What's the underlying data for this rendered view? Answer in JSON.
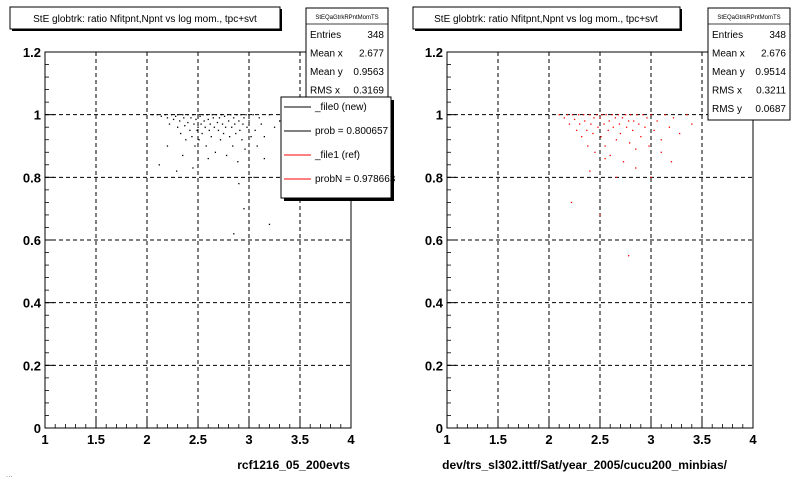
{
  "footer_text": "...",
  "chart_data": [
    {
      "type": "scatter",
      "title": "StE globtrk: ratio Nfitpnt,Npnt vs log mom., tpc+svt",
      "xlabel": "rcf1216_05_200evts",
      "ylabel": "",
      "xlim": [
        1,
        4
      ],
      "ylim": [
        0,
        1.2
      ],
      "x_ticks": [
        "1",
        "1.5",
        "2",
        "2.5",
        "3",
        "3.5",
        "4"
      ],
      "y_ticks": [
        "0",
        "0.2",
        "0.4",
        "0.6",
        "0.8",
        "1",
        "1.2"
      ],
      "grid": true,
      "marker_color": "#000000",
      "stats_box": {
        "name": "StEQaGtrkRPntMomTS",
        "rows": [
          {
            "label": "Entries",
            "value": "348"
          },
          {
            "label": "Mean x",
            "value": "2.677"
          },
          {
            "label": "Mean y",
            "value": "0.9563"
          },
          {
            "label": "RMS x",
            "value": "0.3169"
          }
        ]
      },
      "legend": [
        {
          "label": "_file0 (new)",
          "color": "#000000"
        },
        {
          "label": "prob = 0.800657",
          "color": "#000000"
        },
        {
          "label": "_file1 (ref)",
          "color": "#ff0000"
        },
        {
          "label": "probN = 0.978663",
          "color": "#ff0000"
        }
      ],
      "points": [
        [
          2.05,
          1.0
        ],
        [
          2.1,
          1.0
        ],
        [
          2.14,
          0.995
        ],
        [
          2.18,
          1.0
        ],
        [
          2.2,
          0.99
        ],
        [
          2.22,
          0.97
        ],
        [
          2.24,
          1.0
        ],
        [
          2.26,
          0.985
        ],
        [
          2.28,
          0.995
        ],
        [
          2.3,
          0.96
        ],
        [
          2.3,
          1.0
        ],
        [
          2.32,
          0.98
        ],
        [
          2.33,
          0.94
        ],
        [
          2.35,
          1.0
        ],
        [
          2.36,
          0.99
        ],
        [
          2.37,
          0.965
        ],
        [
          2.38,
          0.92
        ],
        [
          2.4,
          1.0
        ],
        [
          2.4,
          0.975
        ],
        [
          2.42,
          0.95
        ],
        [
          2.43,
          0.99
        ],
        [
          2.44,
          0.93
        ],
        [
          2.45,
          1.0
        ],
        [
          2.46,
          0.97
        ],
        [
          2.47,
          0.9
        ],
        [
          2.48,
          0.985
        ],
        [
          2.49,
          0.95
        ],
        [
          2.5,
          1.0
        ],
        [
          2.5,
          0.96
        ],
        [
          2.51,
          0.92
        ],
        [
          2.52,
          0.995
        ],
        [
          2.53,
          0.97
        ],
        [
          2.54,
          0.94
        ],
        [
          2.55,
          1.0
        ],
        [
          2.56,
          0.98
        ],
        [
          2.57,
          0.96
        ],
        [
          2.58,
          0.9
        ],
        [
          2.59,
          1.0
        ],
        [
          2.6,
          0.985
        ],
        [
          2.61,
          0.95
        ],
        [
          2.62,
          0.97
        ],
        [
          2.63,
          0.93
        ],
        [
          2.64,
          1.0
        ],
        [
          2.65,
          0.99
        ],
        [
          2.66,
          0.96
        ],
        [
          2.67,
          0.88
        ],
        [
          2.68,
          1.0
        ],
        [
          2.69,
          0.975
        ],
        [
          2.7,
          0.95
        ],
        [
          2.71,
          0.99
        ],
        [
          2.72,
          0.92
        ],
        [
          2.73,
          1.0
        ],
        [
          2.74,
          0.97
        ],
        [
          2.75,
          0.94
        ],
        [
          2.76,
          0.995
        ],
        [
          2.77,
          0.96
        ],
        [
          2.78,
          0.87
        ],
        [
          2.79,
          1.0
        ],
        [
          2.8,
          0.98
        ],
        [
          2.81,
          0.93
        ],
        [
          2.82,
          1.0
        ],
        [
          2.83,
          0.96
        ],
        [
          2.84,
          0.9
        ],
        [
          2.85,
          0.99
        ],
        [
          2.86,
          0.97
        ],
        [
          2.87,
          0.94
        ],
        [
          2.88,
          1.0
        ],
        [
          2.89,
          0.85
        ],
        [
          2.9,
          0.98
        ],
        [
          2.91,
          0.95
        ],
        [
          2.92,
          1.0
        ],
        [
          2.93,
          0.92
        ],
        [
          2.94,
          0.97
        ],
        [
          2.95,
          0.99
        ],
        [
          2.96,
          0.89
        ],
        [
          2.97,
          1.0
        ],
        [
          2.98,
          0.96
        ],
        [
          3.0,
          0.98
        ],
        [
          3.02,
          0.93
        ],
        [
          3.04,
          1.0
        ],
        [
          3.06,
          0.95
        ],
        [
          3.08,
          0.9
        ],
        [
          3.1,
          0.99
        ],
        [
          3.12,
          0.97
        ],
        [
          3.15,
          0.93
        ],
        [
          3.2,
          1.0
        ],
        [
          3.25,
          0.96
        ],
        [
          3.3,
          0.98
        ],
        [
          2.12,
          0.84
        ],
        [
          2.29,
          0.82
        ],
        [
          2.9,
          0.78
        ],
        [
          3.05,
          0.8
        ],
        [
          2.85,
          0.62
        ],
        [
          2.95,
          0.7
        ],
        [
          3.2,
          0.65
        ],
        [
          2.2,
          0.9
        ],
        [
          2.35,
          0.87
        ],
        [
          2.6,
          0.86
        ],
        [
          2.45,
          0.83
        ],
        [
          3.15,
          0.86
        ]
      ]
    },
    {
      "type": "scatter",
      "title": "StE globtrk: ratio Nfitpnt,Npnt vs log mom., tpc+svt",
      "xlabel": "dev/trs_sl302.ittf/Sat/year_2005/cucu200_minbias/",
      "ylabel": "",
      "xlim": [
        1,
        4
      ],
      "ylim": [
        0,
        1.2
      ],
      "x_ticks": [
        "1",
        "1.5",
        "2",
        "2.5",
        "3",
        "3.5",
        "4"
      ],
      "y_ticks": [
        "0",
        "0.2",
        "0.4",
        "0.6",
        "0.8",
        "1",
        "1.2"
      ],
      "grid": true,
      "marker_color": "#ff0000",
      "stats_box": {
        "name": "StEQaGtrkRPntMomTS",
        "rows": [
          {
            "label": "Entries",
            "value": "348"
          },
          {
            "label": "Mean x",
            "value": "2.676"
          },
          {
            "label": "Mean y",
            "value": "0.9514"
          },
          {
            "label": "RMS x",
            "value": "0.3211"
          },
          {
            "label": "RMS y",
            "value": "0.0687"
          }
        ]
      },
      "points": [
        [
          2.1,
          1.0
        ],
        [
          2.15,
          0.99
        ],
        [
          2.18,
          1.0
        ],
        [
          2.2,
          0.97
        ],
        [
          2.23,
          1.0
        ],
        [
          2.25,
          0.985
        ],
        [
          2.27,
          0.95
        ],
        [
          2.29,
          1.0
        ],
        [
          2.3,
          0.97
        ],
        [
          2.32,
          0.93
        ],
        [
          2.34,
          1.0
        ],
        [
          2.35,
          0.98
        ],
        [
          2.37,
          0.95
        ],
        [
          2.38,
          0.9
        ],
        [
          2.4,
          1.0
        ],
        [
          2.41,
          0.97
        ],
        [
          2.43,
          0.94
        ],
        [
          2.44,
          0.99
        ],
        [
          2.45,
          0.88
        ],
        [
          2.47,
          1.0
        ],
        [
          2.48,
          0.96
        ],
        [
          2.5,
          0.99
        ],
        [
          2.51,
          0.93
        ],
        [
          2.52,
          1.0
        ],
        [
          2.54,
          0.97
        ],
        [
          2.55,
          0.9
        ],
        [
          2.56,
          1.0
        ],
        [
          2.58,
          0.95
        ],
        [
          2.59,
          0.98
        ],
        [
          2.6,
          0.87
        ],
        [
          2.62,
          1.0
        ],
        [
          2.63,
          0.96
        ],
        [
          2.65,
          0.99
        ],
        [
          2.66,
          0.92
        ],
        [
          2.68,
          1.0
        ],
        [
          2.69,
          0.97
        ],
        [
          2.7,
          0.94
        ],
        [
          2.72,
          0.99
        ],
        [
          2.73,
          0.85
        ],
        [
          2.75,
          1.0
        ],
        [
          2.76,
          0.96
        ],
        [
          2.78,
          0.98
        ],
        [
          2.79,
          0.91
        ],
        [
          2.8,
          1.0
        ],
        [
          2.82,
          0.95
        ],
        [
          2.83,
          0.98
        ],
        [
          2.85,
          0.89
        ],
        [
          2.86,
          1.0
        ],
        [
          2.88,
          0.97
        ],
        [
          2.9,
          0.93
        ],
        [
          2.92,
          1.0
        ],
        [
          2.94,
          0.96
        ],
        [
          2.96,
          0.99
        ],
        [
          2.98,
          0.9
        ],
        [
          3.0,
          1.0
        ],
        [
          3.03,
          0.95
        ],
        [
          3.06,
          0.98
        ],
        [
          3.1,
          0.92
        ],
        [
          3.14,
          1.0
        ],
        [
          3.18,
          0.96
        ],
        [
          3.22,
          0.99
        ],
        [
          3.28,
          0.94
        ],
        [
          3.35,
          1.0
        ],
        [
          3.4,
          0.97
        ],
        [
          2.22,
          0.72
        ],
        [
          2.5,
          0.68
        ],
        [
          2.78,
          0.55
        ],
        [
          3.0,
          0.8
        ],
        [
          2.85,
          0.83
        ],
        [
          3.2,
          0.85
        ],
        [
          2.4,
          0.82
        ],
        [
          2.66,
          0.8
        ],
        [
          3.1,
          0.88
        ],
        [
          2.55,
          0.86
        ]
      ]
    }
  ]
}
